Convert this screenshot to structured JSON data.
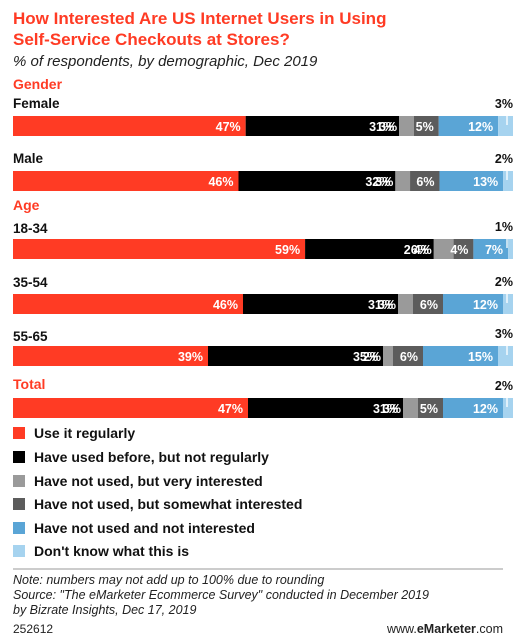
{
  "chart_data": {
    "type": "bar",
    "orientation": "horizontal",
    "stacked": true,
    "title": "How Interested Are US Internet Users in Using Self-Service Checkouts at Stores?",
    "title_lines": [
      "How Interested Are US Internet Users in Using",
      "Self-Service Checkouts at Stores?"
    ],
    "subtitle": "% of respondents, by demographic, Dec 2019",
    "unit": "%",
    "series": [
      {
        "name": "Use it regularly",
        "color": "#ff3b24"
      },
      {
        "name": "Have used before, but not regularly",
        "color": "#000000"
      },
      {
        "name": "Have not used, but very interested",
        "color": "#9a9a9a"
      },
      {
        "name": "Have not used, but somewhat interested",
        "color": "#5c5c5c"
      },
      {
        "name": "Have not used and not interested",
        "color": "#5aa5d6"
      },
      {
        "name": "Don't know what this is",
        "color": "#a6d3ef"
      }
    ],
    "groups": [
      {
        "heading": "Gender",
        "rows": [
          {
            "label": "Female",
            "values": [
              47,
              31,
              3,
              5,
              12,
              3
            ]
          },
          {
            "label": "Male",
            "values": [
              46,
              32,
              3,
              6,
              13,
              2
            ]
          }
        ]
      },
      {
        "heading": "Age",
        "rows": [
          {
            "label": "18-34",
            "values": [
              59,
              26,
              4,
              4,
              7,
              1
            ]
          },
          {
            "label": "35-54",
            "values": [
              46,
              31,
              3,
              6,
              12,
              2
            ]
          },
          {
            "label": "55-65",
            "values": [
              39,
              35,
              2,
              6,
              15,
              3
            ]
          }
        ]
      },
      {
        "heading": "Total",
        "rows": [
          {
            "label": "",
            "values": [
              47,
              31,
              3,
              5,
              12,
              2
            ]
          }
        ]
      }
    ]
  },
  "notes": [
    "Note: numbers may not add up to 100% due to rounding",
    "Source: \"The eMarketer Ecommerce Survey\" conducted in December 2019",
    "by Bizrate Insights, Dec 17, 2019"
  ],
  "footer": {
    "id": "252612",
    "brand_prefix": "www.",
    "brand_bold": "eMarketer",
    "brand_suffix": ".com"
  },
  "colors": {
    "accent": "#ff3b24",
    "text": "#111111"
  }
}
